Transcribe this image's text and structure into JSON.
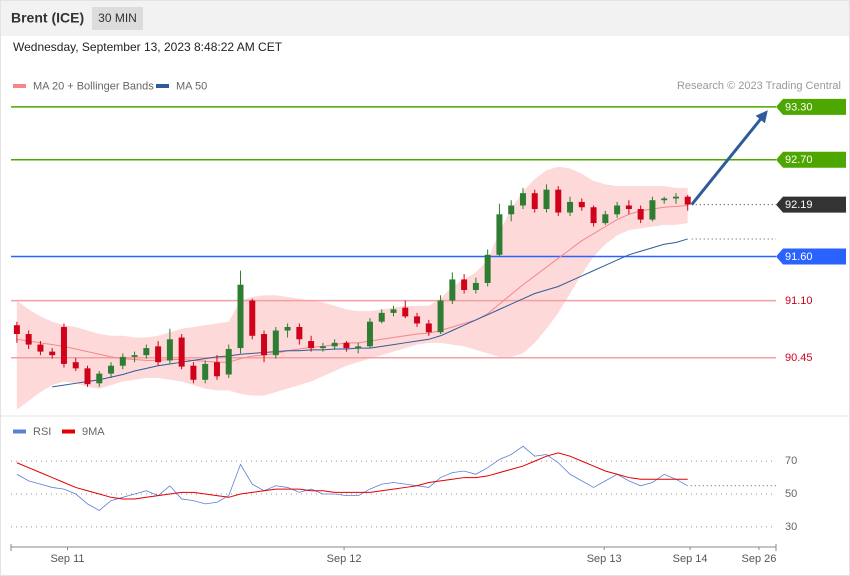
{
  "header": {
    "instrument": "Brent (ICE)",
    "timeframe": "30 MIN",
    "timestamp": "Wednesday, September 13, 2023 8:48:22 AM CET"
  },
  "chart_data": [
    {
      "type": "candlestick",
      "credit": "Research © 2023 Trading Central",
      "xlim": [
        -0.5,
        64.5
      ],
      "ylim": [
        89.8,
        94.06
      ],
      "up_color": "#2e7d32",
      "down_color": "#d0021b",
      "open": [
        90.82,
        90.72,
        90.6,
        90.52,
        90.8,
        90.4,
        90.33,
        90.16,
        90.27,
        90.36,
        90.46,
        90.48,
        90.58,
        90.42,
        90.68,
        90.36,
        90.2,
        90.4,
        90.26,
        90.56,
        91.1,
        90.72,
        90.48,
        90.76,
        90.8,
        90.64,
        90.56,
        90.58,
        90.62,
        90.56,
        90.58,
        90.86,
        90.96,
        91.02,
        90.92,
        90.84,
        90.74,
        91.1,
        91.34,
        91.22,
        91.3,
        91.62,
        92.08,
        92.18,
        92.32,
        92.14,
        92.36,
        92.1,
        92.22,
        92.16,
        91.98,
        92.08,
        92.18,
        92.14,
        92.02,
        92.24,
        92.26,
        92.28
      ],
      "high": [
        90.86,
        90.76,
        90.64,
        90.56,
        90.84,
        90.45,
        90.36,
        90.3,
        90.4,
        90.5,
        90.52,
        90.6,
        90.64,
        90.78,
        90.72,
        90.4,
        90.42,
        90.48,
        90.6,
        91.44,
        91.12,
        90.76,
        90.8,
        90.84,
        90.84,
        90.7,
        90.62,
        90.66,
        90.64,
        90.62,
        90.9,
        91.0,
        91.04,
        91.1,
        90.96,
        90.88,
        91.16,
        91.42,
        91.4,
        91.36,
        91.68,
        92.2,
        92.24,
        92.38,
        92.36,
        92.42,
        92.4,
        92.28,
        92.26,
        92.18,
        92.12,
        92.22,
        92.24,
        92.18,
        92.28,
        92.28,
        92.32,
        92.3
      ],
      "low": [
        90.62,
        90.55,
        90.48,
        90.44,
        90.34,
        90.3,
        90.12,
        90.12,
        90.22,
        90.32,
        90.4,
        90.44,
        90.36,
        90.38,
        90.32,
        90.16,
        90.16,
        90.2,
        90.22,
        90.5,
        90.66,
        90.4,
        90.44,
        90.68,
        90.6,
        90.52,
        90.52,
        90.54,
        90.52,
        90.5,
        90.56,
        90.84,
        90.92,
        90.9,
        90.8,
        90.7,
        90.72,
        91.06,
        91.18,
        91.18,
        91.26,
        91.6,
        92.0,
        92.14,
        92.1,
        92.1,
        92.06,
        92.06,
        92.12,
        91.94,
        91.96,
        92.04,
        92.08,
        91.98,
        92.0,
        92.2,
        92.2,
        92.12
      ],
      "close": [
        90.72,
        90.6,
        90.52,
        90.48,
        90.38,
        90.33,
        90.15,
        90.27,
        90.36,
        90.46,
        90.48,
        90.56,
        90.4,
        90.66,
        90.35,
        90.2,
        90.38,
        90.24,
        90.55,
        91.28,
        90.7,
        90.48,
        90.76,
        90.8,
        90.66,
        90.56,
        90.58,
        90.62,
        90.56,
        90.58,
        90.86,
        90.96,
        91.0,
        90.92,
        90.84,
        90.74,
        91.1,
        91.34,
        91.22,
        91.3,
        91.62,
        92.08,
        92.18,
        92.32,
        92.14,
        92.36,
        92.1,
        92.22,
        92.16,
        91.98,
        92.08,
        92.18,
        92.14,
        92.02,
        92.24,
        92.26,
        92.28,
        92.19
      ],
      "series": [
        {
          "name": "MA 20 + Bollinger Bands",
          "color": "#f4878a",
          "band_color": "#fdd9d9",
          "values": [
            90.66,
            90.64,
            90.62,
            90.6,
            90.58,
            90.55,
            90.52,
            90.49,
            90.46,
            90.44,
            90.43,
            90.42,
            90.42,
            90.43,
            90.43,
            90.42,
            90.41,
            90.4,
            90.4,
            90.44,
            90.47,
            90.48,
            90.5,
            90.53,
            90.55,
            90.57,
            90.58,
            90.6,
            90.62,
            90.62,
            90.64,
            90.66,
            90.68,
            90.7,
            90.72,
            90.73,
            90.76,
            90.8,
            90.84,
            90.88,
            90.95,
            91.06,
            91.17,
            91.28,
            91.38,
            91.48,
            91.58,
            91.68,
            91.78,
            91.86,
            91.94,
            92.02,
            92.08,
            92.12,
            92.14,
            92.16,
            92.17,
            92.18
          ],
          "upper": [
            91.1,
            91.0,
            90.92,
            90.86,
            90.82,
            90.8,
            90.76,
            90.72,
            90.7,
            90.7,
            90.68,
            90.68,
            90.7,
            90.74,
            90.78,
            90.8,
            90.82,
            90.84,
            90.86,
            91.1,
            91.14,
            91.16,
            91.16,
            91.14,
            91.12,
            91.1,
            91.08,
            91.04,
            91.0,
            90.98,
            90.98,
            91.0,
            91.02,
            91.04,
            91.04,
            91.04,
            91.12,
            91.26,
            91.34,
            91.42,
            91.56,
            91.88,
            92.14,
            92.34,
            92.48,
            92.58,
            92.62,
            92.6,
            92.54,
            92.46,
            92.42,
            92.4,
            92.4,
            92.4,
            92.4,
            92.4,
            92.38,
            92.38
          ],
          "lower": [
            89.86,
            89.96,
            90.06,
            90.14,
            90.18,
            90.16,
            90.12,
            90.1,
            90.14,
            90.18,
            90.2,
            90.22,
            90.22,
            90.2,
            90.18,
            90.14,
            90.1,
            90.08,
            90.08,
            90.04,
            90.02,
            90.02,
            90.06,
            90.1,
            90.14,
            90.18,
            90.24,
            90.3,
            90.36,
            90.4,
            90.44,
            90.48,
            90.52,
            90.56,
            90.6,
            90.62,
            90.62,
            90.6,
            90.58,
            90.54,
            90.5,
            90.46,
            90.46,
            90.5,
            90.62,
            90.78,
            90.96,
            91.18,
            91.4,
            91.6,
            91.74,
            91.84,
            91.9,
            91.92,
            91.94,
            91.96,
            91.96,
            91.98
          ]
        },
        {
          "name": "MA 50",
          "color": "#2f5b9c",
          "values": [
            null,
            null,
            null,
            90.12,
            90.14,
            90.16,
            90.18,
            90.2,
            90.23,
            90.26,
            90.3,
            90.33,
            90.36,
            90.38,
            90.4,
            90.42,
            90.44,
            90.46,
            90.47,
            90.49,
            90.5,
            90.51,
            90.52,
            90.53,
            90.53,
            90.54,
            90.54,
            90.55,
            90.55,
            90.56,
            90.56,
            90.58,
            90.6,
            90.62,
            90.64,
            90.66,
            90.7,
            90.76,
            90.82,
            90.88,
            90.94,
            91.0,
            91.06,
            91.12,
            91.18,
            91.22,
            91.26,
            91.32,
            91.38,
            91.44,
            91.5,
            91.56,
            91.62,
            91.66,
            91.7,
            91.74,
            91.76,
            91.8
          ]
        }
      ],
      "levels": [
        {
          "value": 93.3,
          "label": "93.30",
          "color": "#4ea600",
          "line": "solid",
          "style": "tag"
        },
        {
          "value": 92.7,
          "label": "92.70",
          "color": "#4ea600",
          "line": "solid",
          "style": "tag"
        },
        {
          "value": 92.19,
          "label": "92.19",
          "color": "#333333",
          "line": "dotted",
          "style": "tag"
        },
        {
          "value": 91.6,
          "label": "91.60",
          "color": "#2962ff",
          "line": "solid",
          "style": "tag"
        },
        {
          "value": 91.1,
          "label": "91.10",
          "color": "#f4a0a0",
          "line": "solid",
          "style": "text",
          "text_color": "#d0021b"
        },
        {
          "value": 90.45,
          "label": "90.45",
          "color": "#f4a0a0",
          "line": "solid",
          "style": "text",
          "text_color": "#d0021b"
        }
      ]
    },
    {
      "type": "line",
      "xlim": [
        -0.5,
        64.5
      ],
      "ylim": [
        19,
        95
      ],
      "yticks": [
        30,
        50,
        70
      ],
      "grid": true,
      "xticks": [
        {
          "value": 4.3,
          "label": "Sep 11"
        },
        {
          "value": 27.8,
          "label": "Sep 12"
        },
        {
          "value": 49.9,
          "label": "Sep 13"
        },
        {
          "value": 57.2,
          "label": "Sep 14"
        },
        {
          "value": 63.05,
          "label": "Sep 26"
        }
      ],
      "series": [
        {
          "name": "RSI",
          "color": "#5b7fd6",
          "values": [
            62,
            58,
            56,
            54,
            53,
            50,
            44,
            40,
            46,
            48,
            50,
            52,
            49,
            55,
            47,
            46,
            44,
            45,
            49,
            68,
            56,
            52,
            55,
            54,
            51,
            53,
            50,
            50,
            49,
            49,
            53,
            56,
            57,
            56,
            55,
            54,
            60,
            63,
            64,
            62,
            66,
            71,
            74,
            79,
            73,
            74,
            69,
            62,
            58,
            54,
            58,
            62,
            58,
            55,
            57,
            62,
            59,
            55
          ]
        },
        {
          "name": "9MA",
          "color": "#e00000",
          "values": [
            69,
            66,
            63,
            60,
            57,
            54,
            52,
            50,
            48,
            47,
            47,
            48,
            49,
            50,
            51,
            51,
            50,
            49,
            48,
            50,
            51,
            52,
            53,
            53,
            53,
            52,
            52,
            51,
            51,
            51,
            51,
            52,
            53,
            54,
            55,
            57,
            58,
            59,
            60,
            60,
            61,
            63,
            65,
            67,
            70,
            73,
            75,
            73,
            70,
            67,
            64,
            62,
            60,
            59,
            59,
            59,
            59,
            59
          ]
        }
      ]
    }
  ]
}
